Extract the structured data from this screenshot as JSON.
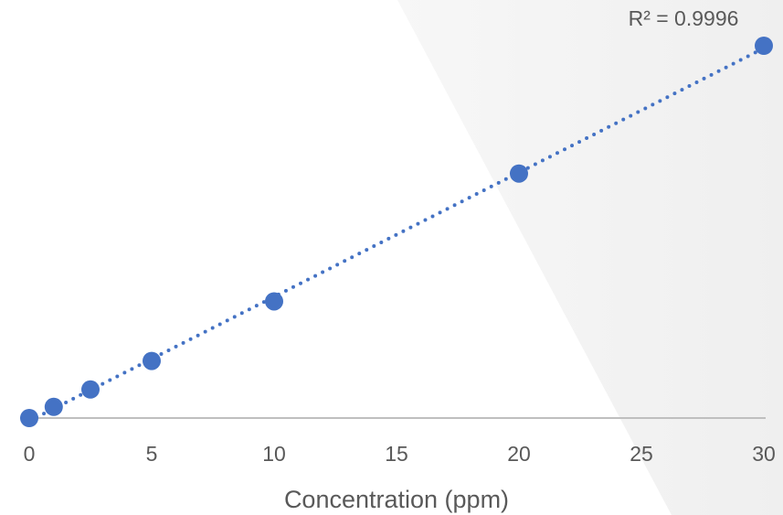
{
  "chart_data": {
    "type": "scatter",
    "x_label": "Concentration (ppm)",
    "annotation": "R² = 0.9996",
    "x": [
      0,
      1,
      2.5,
      5,
      10,
      20,
      30
    ],
    "series": [
      {
        "color": "#4472c4",
        "values": [
          0,
          0.9,
          2.3,
          4.6,
          9.4,
          19.7,
          30
        ]
      }
    ],
    "xlim": [
      0,
      30
    ],
    "xticks": [
      0,
      5,
      10,
      15,
      20,
      25,
      30
    ],
    "ylim": [
      0,
      30
    ],
    "trendline": "linear"
  }
}
